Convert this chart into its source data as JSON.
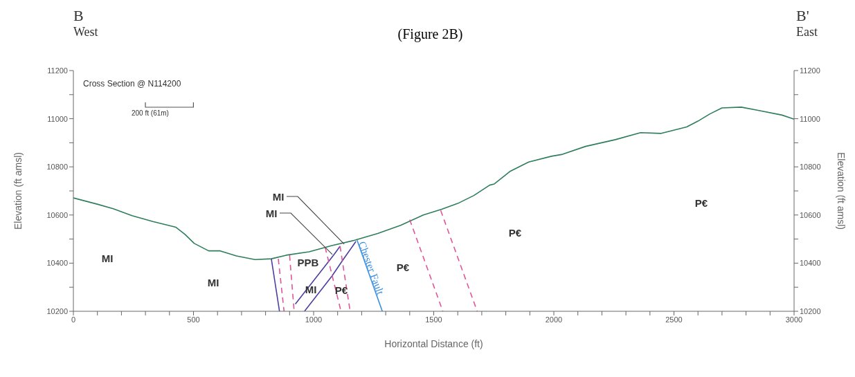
{
  "chart_data": {
    "type": "line",
    "title": "(Figure 2B)",
    "xlabel": "Horizontal Distance (ft)",
    "ylabel": "Elevation (ft amsl)",
    "y2label": "Elevation (ft amsl)",
    "xlim": [
      0,
      3000
    ],
    "ylim": [
      10200,
      11200
    ],
    "y2lim": [
      10200,
      11200
    ],
    "xticks": [
      0,
      {
        "value": 100,
        "label": null
      },
      {
        "value": 200,
        "label": null
      },
      {
        "value": 300,
        "label": null
      },
      {
        "value": 400,
        "label": null
      },
      500,
      {
        "value": 600,
        "label": null
      },
      {
        "value": 700,
        "label": null
      },
      {
        "value": 800,
        "label": null
      },
      {
        "value": 900,
        "label": null
      },
      1000,
      {
        "value": 1100,
        "label": null
      },
      {
        "value": 1200,
        "label": null
      },
      {
        "value": 1300,
        "label": null
      },
      {
        "value": 1400,
        "label": null
      },
      1500,
      {
        "value": 1600,
        "label": null
      },
      {
        "value": 1700,
        "label": null
      },
      {
        "value": 1800,
        "label": null
      },
      {
        "value": 1900,
        "label": null
      },
      2000,
      {
        "value": 2100,
        "label": null
      },
      {
        "value": 2200,
        "label": null
      },
      {
        "value": 2300,
        "label": null
      },
      {
        "value": 2400,
        "label": null
      },
      2500,
      {
        "value": 2600,
        "label": null
      },
      {
        "value": 2700,
        "label": null
      },
      {
        "value": 2800,
        "label": null
      },
      {
        "value": 2900,
        "label": null
      },
      3000
    ],
    "yticks": [
      10200,
      {
        "value": 10300,
        "label": null
      },
      10400,
      {
        "value": 10500,
        "label": null
      },
      10600,
      {
        "value": 10700,
        "label": null
      },
      10800,
      {
        "value": 10900,
        "label": null
      },
      11000,
      {
        "value": 11100,
        "label": null
      },
      11200
    ],
    "y2ticks": [
      10200,
      {
        "value": 10300,
        "label": null
      },
      10400,
      {
        "value": 10500,
        "label": null
      },
      10600,
      {
        "value": 10700,
        "label": null
      },
      10800,
      {
        "value": 10900,
        "label": null
      },
      11000,
      {
        "value": 11100,
        "label": null
      },
      11200
    ],
    "marker": "none",
    "series": [
      {
        "color": "#2e7d5b",
        "line_style": "solid",
        "x": [
          0,
          99,
          166,
          244,
          331,
          427,
          464,
          503,
          563,
          611,
          679,
          756,
          824,
          886,
          981,
          1076,
          1171,
          1267,
          1362,
          1457,
          1533,
          1600,
          1667,
          1733,
          1752,
          1819,
          1895,
          1990,
          2036,
          2132,
          2256,
          2361,
          2447,
          2553,
          2600,
          2650,
          2700,
          2780,
          2850,
          2950,
          3000
        ],
        "values": [
          10671,
          10645,
          10626,
          10597,
          10573,
          10549,
          10520,
          10482,
          10451,
          10451,
          10430,
          10415,
          10418,
          10433,
          10447,
          10473,
          10495,
          10523,
          10557,
          10600,
          10624,
          10648,
          10681,
          10724,
          10729,
          10782,
          10820,
          10844,
          10852,
          10885,
          10913,
          10942,
          10939,
          10966,
          10990,
          11020,
          11045,
          11048,
          11035,
          11015,
          10998
        ]
      },
      {
        "color": "#4b3f9e",
        "line_style": "solid",
        "x": [
          824,
          858
        ],
        "values": [
          10418,
          10200
        ]
      },
      {
        "color": "#e0559a",
        "line_style": "dashed",
        "x": [
          853,
          877
        ],
        "values": [
          10418,
          10200
        ]
      },
      {
        "color": "#e0559a",
        "line_style": "dashed",
        "x": [
          900,
          919
        ],
        "values": [
          10433,
          10200
        ]
      },
      {
        "color": "#4b3f9e",
        "line_style": "solid",
        "x": [
          924,
          1086,
          1110
        ],
        "values": [
          10230,
          10437,
          10470
        ]
      },
      {
        "color": "#4b3f9e",
        "line_style": "solid",
        "x": [
          962,
          1076,
          1119,
          1176
        ],
        "values": [
          10200,
          10346,
          10409,
          10490
        ]
      },
      {
        "color": "#e0559a",
        "line_style": "dashed",
        "x": [
          1048,
          1114
        ],
        "values": [
          10466,
          10200
        ]
      },
      {
        "color": "#e0559a",
        "line_style": "dashed",
        "x": [
          1110,
          1152
        ],
        "values": [
          10471,
          10200
        ]
      },
      {
        "name": "Chester Fault",
        "color": "#3a8ee0",
        "line_style": "solid",
        "x": [
          1181,
          1286
        ],
        "values": [
          10495,
          10200
        ]
      },
      {
        "color": "#e0559a",
        "line_style": "dashed",
        "x": [
          1400,
          1538
        ],
        "values": [
          10581,
          10200
        ]
      },
      {
        "color": "#e0559a",
        "line_style": "dashed",
        "x": [
          1529,
          1681
        ],
        "values": [
          10619,
          10200
        ]
      }
    ],
    "annotations": [
      "B",
      "West",
      "B'",
      "East",
      "Cross Section @ N114200",
      "200 ft (61m)",
      "MI",
      "MI",
      {
        "text": "MI",
        "x": 1127,
        "y": 10479
      },
      {
        "text": "MI",
        "x": 1078,
        "y": 10436
      },
      "PPB",
      "MI",
      "P€",
      "P€",
      "P€",
      "P€"
    ]
  }
}
